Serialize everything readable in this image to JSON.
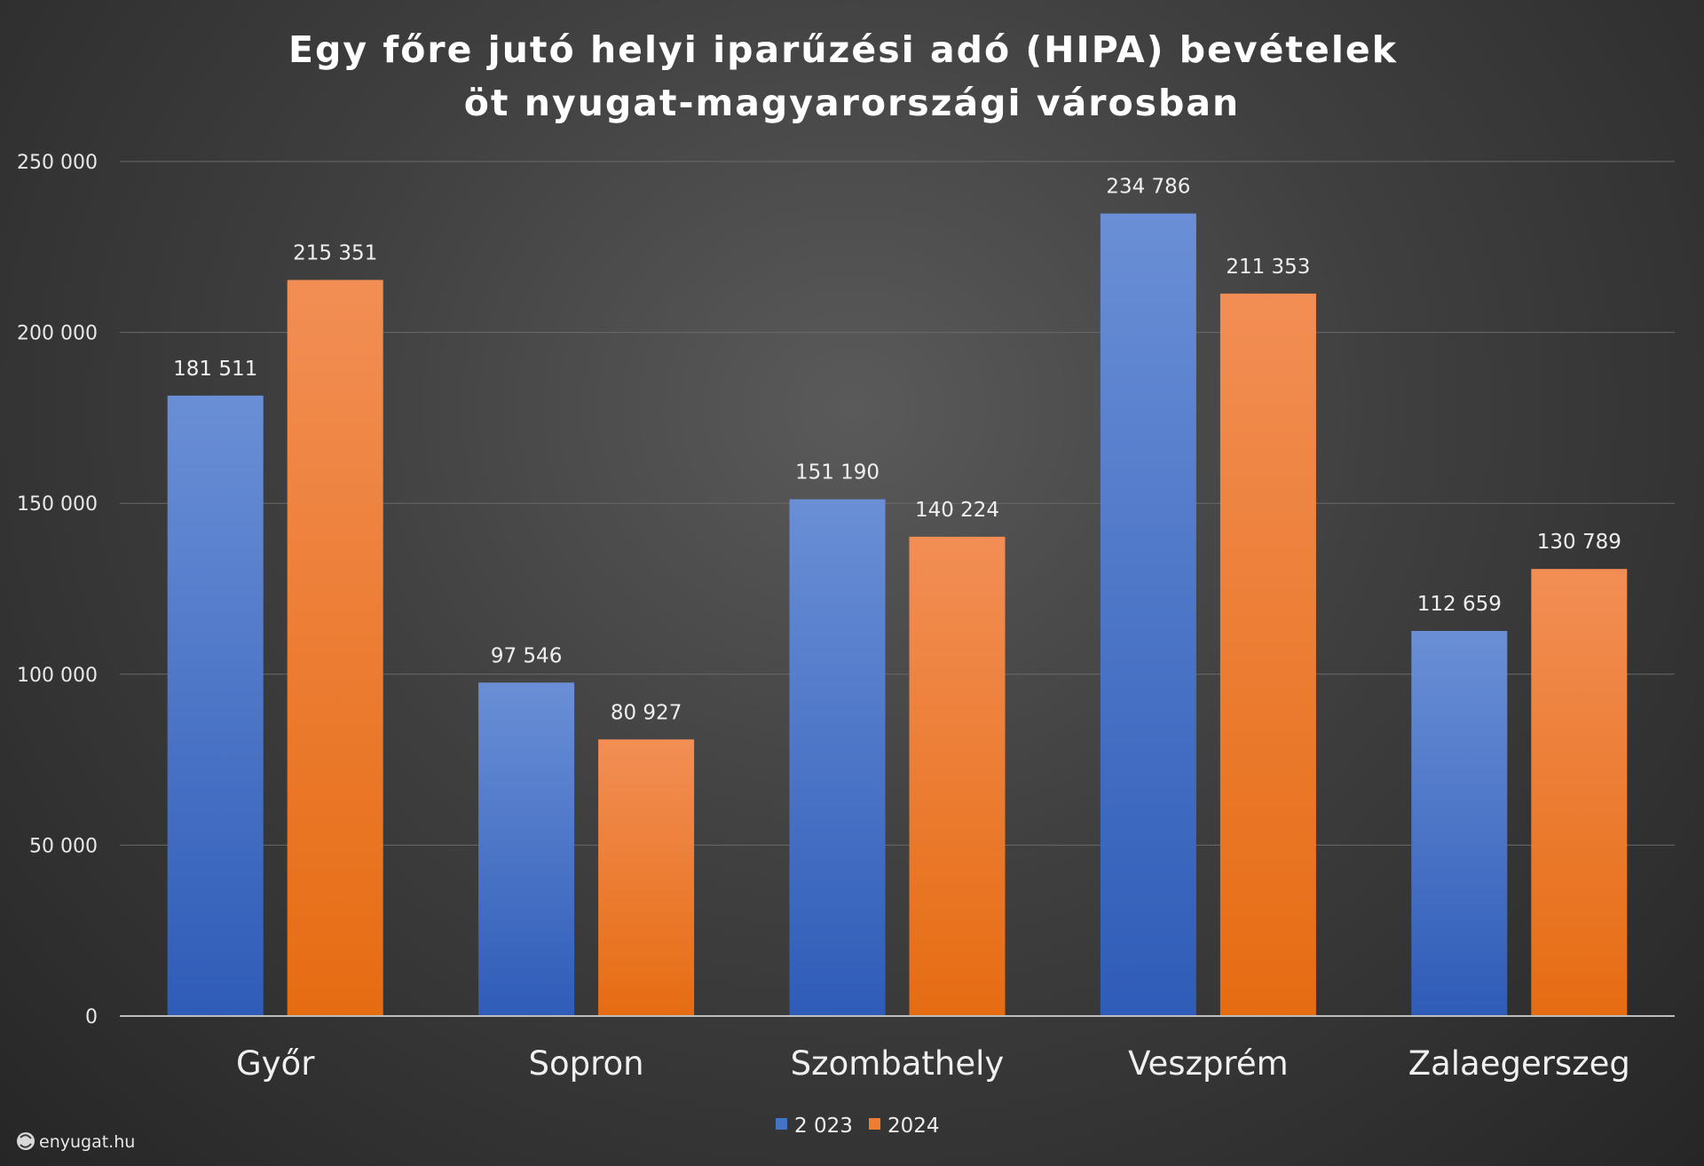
{
  "chart_data": {
    "type": "bar",
    "title": [
      "Egy főre jutó helyi iparűzési adó (HIPA) bevételek",
      "öt nyugat-magyarországi városban"
    ],
    "categories": [
      "Győr",
      "Sopron",
      "Szombathely",
      "Veszprém",
      "Zalaegerszeg"
    ],
    "series": [
      {
        "name": "2 023",
        "color": "#4472c4",
        "values": [
          181511,
          97546,
          151190,
          234786,
          112659
        ],
        "labels": [
          "181 511",
          "97 546",
          "151 190",
          "234 786",
          "112 659"
        ]
      },
      {
        "name": "2024",
        "color": "#ed7d31",
        "values": [
          215351,
          80927,
          140224,
          211353,
          130789
        ],
        "labels": [
          "215 351",
          "80 927",
          "140 224",
          "211 353",
          "130 789"
        ]
      }
    ],
    "ylim": [
      0,
      250000
    ],
    "yticks": [
      0,
      50000,
      100000,
      150000,
      200000,
      250000
    ],
    "ytick_labels": [
      "0",
      "50 000",
      "100 000",
      "150 000",
      "200 000",
      "250 000"
    ],
    "xlabel": "",
    "ylabel": "",
    "grid": true,
    "legend_position": "bottom-center"
  },
  "source": {
    "text": "enyugat.hu",
    "icon": "enyugat-logo-icon"
  }
}
